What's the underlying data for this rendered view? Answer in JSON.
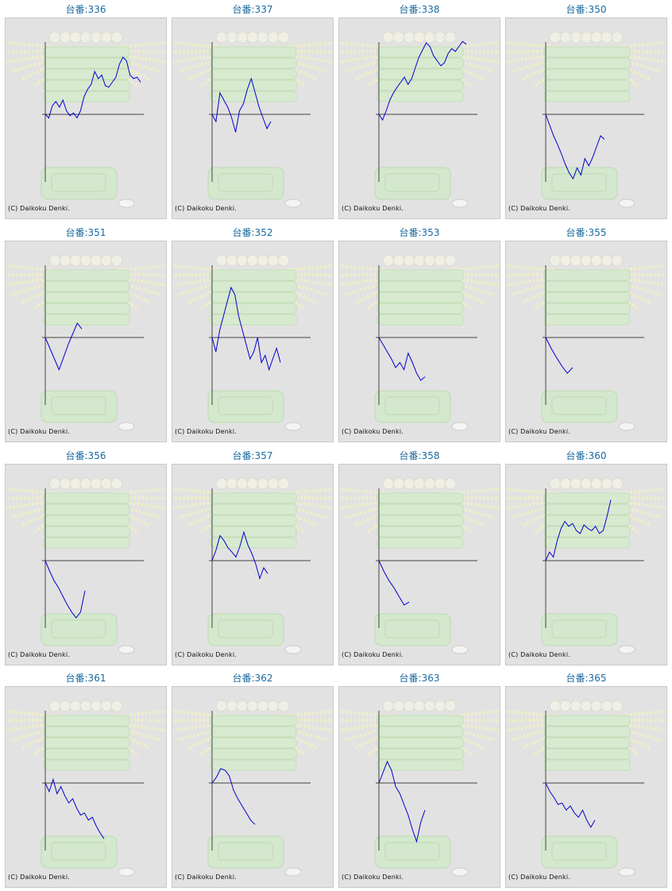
{
  "copyright": "(C) Daikoku Denki.",
  "title_prefix": "台番:",
  "colors": {
    "title": "#1a6aa0",
    "line": "#0000cc",
    "axis": "#444444",
    "background": "#e2e2e2"
  },
  "machines": [
    {
      "title": "台番:336",
      "chart_data": {
        "type": "line",
        "values": [
          0,
          -0.05,
          0.12,
          0.18,
          0.1,
          0.2,
          0.05,
          -0.02,
          0.02,
          -0.05,
          0.05,
          0.25,
          0.35,
          0.42,
          0.6,
          0.5,
          0.55,
          0.4,
          0.38,
          0.45,
          0.52,
          0.7,
          0.8,
          0.75,
          0.55,
          0.5,
          0.52,
          0.45
        ]
      }
    },
    {
      "title": "台番:337",
      "chart_data": {
        "type": "line",
        "values": [
          0,
          -0.1,
          0.3,
          0.2,
          0.1,
          -0.05,
          -0.25,
          0.05,
          0.15,
          0.35,
          0.5,
          0.3,
          0.1,
          -0.05,
          -0.2,
          -0.1
        ]
      }
    },
    {
      "title": "台番:338",
      "chart_data": {
        "type": "line",
        "values": [
          0,
          -0.08,
          0.05,
          0.2,
          0.3,
          0.38,
          0.45,
          0.52,
          0.42,
          0.5,
          0.65,
          0.8,
          0.9,
          1.0,
          0.95,
          0.82,
          0.75,
          0.68,
          0.72,
          0.85,
          0.92,
          0.88,
          0.95,
          1.02,
          0.98
        ]
      }
    },
    {
      "title": "台番:350",
      "chart_data": {
        "type": "line",
        "values": [
          0,
          -0.15,
          -0.3,
          -0.42,
          -0.55,
          -0.7,
          -0.82,
          -0.9,
          -0.75,
          -0.85,
          -0.62,
          -0.72,
          -0.6,
          -0.45,
          -0.3,
          -0.35
        ]
      }
    },
    {
      "title": "台番:351",
      "chart_data": {
        "type": "line",
        "values": [
          0,
          -0.15,
          -0.3,
          -0.45,
          -0.28,
          -0.1,
          0.05,
          0.2,
          0.12
        ]
      }
    },
    {
      "title": "台番:352",
      "chart_data": {
        "type": "line",
        "values": [
          0,
          -0.2,
          0.1,
          0.3,
          0.5,
          0.7,
          0.6,
          0.3,
          0.1,
          -0.1,
          -0.3,
          -0.2,
          0,
          -0.35,
          -0.25,
          -0.45,
          -0.3,
          -0.15,
          -0.35
        ]
      }
    },
    {
      "title": "台番:353",
      "chart_data": {
        "type": "line",
        "values": [
          0,
          -0.1,
          -0.2,
          -0.3,
          -0.42,
          -0.35,
          -0.45,
          -0.22,
          -0.35,
          -0.5,
          -0.6,
          -0.55
        ]
      }
    },
    {
      "title": "台番:355",
      "chart_data": {
        "type": "line",
        "values": [
          0,
          -0.15,
          -0.28,
          -0.4,
          -0.5,
          -0.42
        ]
      }
    },
    {
      "title": "台番:356",
      "chart_data": {
        "type": "line",
        "values": [
          0,
          -0.15,
          -0.28,
          -0.38,
          -0.5,
          -0.62,
          -0.72,
          -0.8,
          -0.72,
          -0.42
        ]
      }
    },
    {
      "title": "台番:357",
      "chart_data": {
        "type": "line",
        "values": [
          0,
          0.15,
          0.35,
          0.28,
          0.18,
          0.12,
          0.05,
          0.2,
          0.4,
          0.22,
          0.1,
          -0.05,
          -0.25,
          -0.1,
          -0.18
        ]
      }
    },
    {
      "title": "台番:358",
      "chart_data": {
        "type": "line",
        "values": [
          0,
          -0.15,
          -0.28,
          -0.38,
          -0.5,
          -0.62,
          -0.58
        ]
      }
    },
    {
      "title": "台番:360",
      "chart_data": {
        "type": "line",
        "values": [
          0,
          0.12,
          0.05,
          0.28,
          0.45,
          0.55,
          0.48,
          0.52,
          0.42,
          0.38,
          0.5,
          0.45,
          0.42,
          0.48,
          0.38,
          0.42,
          0.62,
          0.85
        ]
      }
    },
    {
      "title": "台番:361",
      "chart_data": {
        "type": "line",
        "values": [
          0,
          -0.12,
          0.05,
          -0.15,
          -0.05,
          -0.18,
          -0.28,
          -0.22,
          -0.35,
          -0.45,
          -0.42,
          -0.52,
          -0.48,
          -0.6,
          -0.7,
          -0.78
        ]
      }
    },
    {
      "title": "台番:362",
      "chart_data": {
        "type": "line",
        "values": [
          0,
          0.08,
          0.2,
          0.18,
          0.1,
          -0.1,
          -0.22,
          -0.32,
          -0.42,
          -0.52,
          -0.58
        ]
      }
    },
    {
      "title": "台番:363",
      "chart_data": {
        "type": "line",
        "values": [
          0,
          0.15,
          0.3,
          0.18,
          -0.05,
          -0.15,
          -0.3,
          -0.45,
          -0.65,
          -0.82,
          -0.55,
          -0.38
        ]
      }
    },
    {
      "title": "台番:365",
      "chart_data": {
        "type": "line",
        "values": [
          0,
          -0.12,
          -0.2,
          -0.3,
          -0.28,
          -0.38,
          -0.32,
          -0.42,
          -0.48,
          -0.38,
          -0.52,
          -0.62,
          -0.52
        ]
      }
    }
  ]
}
